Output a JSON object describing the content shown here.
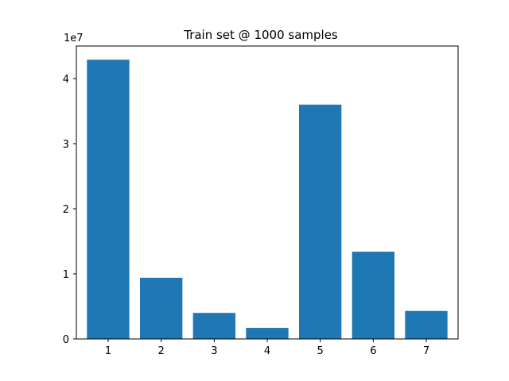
{
  "chart_data": {
    "type": "bar",
    "title": "Train set @ 1000 samples",
    "xlabel": "",
    "ylabel": "",
    "categories": [
      "1",
      "2",
      "3",
      "4",
      "5",
      "6",
      "7"
    ],
    "values": [
      42900000,
      9400000,
      4000000,
      1700000,
      36000000,
      13400000,
      4300000
    ],
    "ylim": [
      0,
      45000000
    ],
    "yticks": [
      0,
      10000000,
      20000000,
      30000000,
      40000000
    ],
    "ytick_labels": [
      "0",
      "1",
      "2",
      "3",
      "4"
    ],
    "y_offset_label": "1e7",
    "bar_color": "#1f77b4",
    "grid": false,
    "legend": "none"
  }
}
